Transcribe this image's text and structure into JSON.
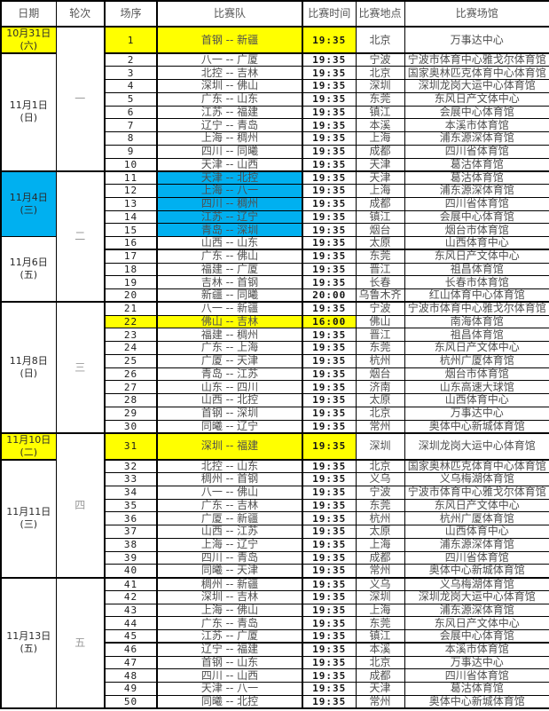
{
  "header": {
    "date": "日期",
    "round": "轮次",
    "order": "场序",
    "teams": "比赛队",
    "time": "比赛时间",
    "location": "比赛地点",
    "venue": "比赛场馆"
  },
  "colors": {
    "highlight_yellow": "#ffff00",
    "highlight_cyan": "#00b0f0"
  },
  "date_groups": [
    {
      "label": "10月31日",
      "week": "(六)",
      "rows": [
        1,
        1
      ],
      "bg": "yellow"
    },
    {
      "label": "11月1日",
      "week": "(日)",
      "rows": [
        2,
        10
      ],
      "bg": null
    },
    {
      "label": "11月4日",
      "week": "(三)",
      "rows": [
        11,
        15
      ],
      "bg": "cyan"
    },
    {
      "label": "11月6日",
      "week": "(五)",
      "rows": [
        16,
        20
      ],
      "bg": null
    },
    {
      "label": "11月8日",
      "week": "(日)",
      "rows": [
        21,
        30
      ],
      "bg": null
    },
    {
      "label": "11月10日",
      "week": "(二)",
      "rows": [
        31,
        31
      ],
      "bg": "yellow"
    },
    {
      "label": "11月11日",
      "week": "(三)",
      "rows": [
        32,
        40
      ],
      "bg": null
    },
    {
      "label": "11月13日",
      "week": "(五)",
      "rows": [
        41,
        50
      ],
      "bg": null
    }
  ],
  "rounds": [
    {
      "label": "一",
      "rows": [
        1,
        10
      ]
    },
    {
      "label": "二",
      "rows": [
        11,
        20
      ]
    },
    {
      "label": "三",
      "rows": [
        21,
        30
      ]
    },
    {
      "label": "四",
      "rows": [
        31,
        40
      ]
    },
    {
      "label": "五",
      "rows": [
        41,
        50
      ]
    }
  ],
  "matches": [
    {
      "no": "1",
      "teams": "首钢 -- 新疆",
      "time": "19:35",
      "location": "北京",
      "venue": "万事达中心",
      "hl": "yellow"
    },
    {
      "no": "2",
      "teams": "八一 -- 广厦",
      "time": "19:35",
      "location": "宁波",
      "venue": "宁波市体育中心雅戈尔体育馆",
      "hl": null
    },
    {
      "no": "3",
      "teams": "北控 -- 吉林",
      "time": "19:35",
      "location": "北京",
      "venue": "国家奥林匹克体育中心体育馆",
      "hl": null
    },
    {
      "no": "4",
      "teams": "深圳 -- 佛山",
      "time": "19:35",
      "location": "深圳",
      "venue": "深圳龙岗大运中心体育馆",
      "hl": null
    },
    {
      "no": "5",
      "teams": "广东 -- 山东",
      "time": "19:35",
      "location": "东莞",
      "venue": "东风日产文体中心",
      "hl": null
    },
    {
      "no": "6",
      "teams": "江苏 -- 福建",
      "time": "19:35",
      "location": "镇江",
      "venue": "会展中心体育馆",
      "hl": null
    },
    {
      "no": "7",
      "teams": "辽宁 -- 青岛",
      "time": "19:35",
      "location": "本溪",
      "venue": "本溪市体育馆",
      "hl": null
    },
    {
      "no": "8",
      "teams": "上海 -- 稠州",
      "time": "19:35",
      "location": "上海",
      "venue": "浦东源深体育馆",
      "hl": null
    },
    {
      "no": "9",
      "teams": "四川 -- 同曦",
      "time": "19:35",
      "location": "成都",
      "venue": "四川省体育馆",
      "hl": null
    },
    {
      "no": "10",
      "teams": "天津 -- 山西",
      "time": "19:35",
      "location": "天津",
      "venue": "葛沽体育馆",
      "hl": null
    },
    {
      "no": "11",
      "teams": "天津 -- 北控",
      "time": "19:35",
      "location": "天津",
      "venue": "葛沽体育馆",
      "hl": "cyan"
    },
    {
      "no": "12",
      "teams": "上海 -- 八一",
      "time": "19:35",
      "location": "上海",
      "venue": "浦东源深体育馆",
      "hl": "cyan"
    },
    {
      "no": "13",
      "teams": "四川 -- 稠州",
      "time": "19:35",
      "location": "成都",
      "venue": "四川省体育馆",
      "hl": "cyan"
    },
    {
      "no": "14",
      "teams": "江苏 -- 辽宁",
      "time": "19:35",
      "location": "镇江",
      "venue": "会展中心体育馆",
      "hl": "cyan"
    },
    {
      "no": "15",
      "teams": "青岛 -- 深圳",
      "time": "19:35",
      "location": "烟台",
      "venue": "烟台市体育馆",
      "hl": "cyan"
    },
    {
      "no": "16",
      "teams": "山西 -- 山东",
      "time": "19:35",
      "location": "太原",
      "venue": "山西体育中心",
      "hl": null
    },
    {
      "no": "17",
      "teams": "广东 -- 佛山",
      "time": "19:35",
      "location": "东莞",
      "venue": "东风日产文体中心",
      "hl": null
    },
    {
      "no": "18",
      "teams": "福建 -- 广厦",
      "time": "19:35",
      "location": "晋江",
      "venue": "祖昌体育馆",
      "hl": null
    },
    {
      "no": "19",
      "teams": "吉林 -- 首钢",
      "time": "19:35",
      "location": "长春",
      "venue": "长春市体育馆",
      "hl": null
    },
    {
      "no": "20",
      "teams": "新疆 -- 同曦",
      "time": "20:00",
      "location": "乌鲁木齐",
      "venue": "红山体育中心体育馆",
      "hl": null
    },
    {
      "no": "21",
      "teams": "八一 -- 新疆",
      "time": "19:35",
      "location": "宁波",
      "venue": "宁波市体育中心雅戈尔体育馆",
      "hl": null
    },
    {
      "no": "22",
      "teams": "佛山 -- 吉林",
      "time": "16:00",
      "location": "佛山",
      "venue": "南海体育馆",
      "hl": "yellow"
    },
    {
      "no": "23",
      "teams": "福建 -- 稠州",
      "time": "19:35",
      "location": "晋江",
      "venue": "祖昌体育馆",
      "hl": null
    },
    {
      "no": "24",
      "teams": "广东 -- 上海",
      "time": "19:35",
      "location": "东莞",
      "venue": "东风日产文体中心",
      "hl": null
    },
    {
      "no": "25",
      "teams": "广厦 -- 天津",
      "time": "19:35",
      "location": "杭州",
      "venue": "杭州广厦体育馆",
      "hl": null
    },
    {
      "no": "26",
      "teams": "青岛 -- 江苏",
      "time": "19:35",
      "location": "烟台",
      "venue": "烟台市体育馆",
      "hl": null
    },
    {
      "no": "27",
      "teams": "山东 -- 四川",
      "time": "19:35",
      "location": "济南",
      "venue": "山东高速大球馆",
      "hl": null
    },
    {
      "no": "28",
      "teams": "山西 -- 北控",
      "time": "19:35",
      "location": "太原",
      "venue": "山西体育中心",
      "hl": null
    },
    {
      "no": "29",
      "teams": "首钢 -- 深圳",
      "time": "19:35",
      "location": "北京",
      "venue": "万事达中心",
      "hl": null
    },
    {
      "no": "30",
      "teams": "同曦 -- 辽宁",
      "time": "19:35",
      "location": "常州",
      "venue": "奥体中心新城体育馆",
      "hl": null
    },
    {
      "no": "31",
      "teams": "深圳 -- 福建",
      "time": "19:35",
      "location": "深圳",
      "venue": "深圳龙岗大运中心体育馆",
      "hl": "yellow"
    },
    {
      "no": "32",
      "teams": "北控 -- 山东",
      "time": "19:35",
      "location": "北京",
      "venue": "国家奥林匹克体育中心体育馆",
      "hl": null
    },
    {
      "no": "33",
      "teams": "稠州 -- 首钢",
      "time": "19:35",
      "location": "义乌",
      "venue": "义乌梅湖体育馆",
      "hl": null
    },
    {
      "no": "34",
      "teams": "八一 -- 佛山",
      "time": "19:35",
      "location": "宁波",
      "venue": "宁波市体育中心雅戈尔体育馆",
      "hl": null
    },
    {
      "no": "35",
      "teams": "广东 -- 吉林",
      "time": "19:35",
      "location": "东莞",
      "venue": "东风日产文体中心",
      "hl": null
    },
    {
      "no": "36",
      "teams": "广厦 -- 新疆",
      "time": "19:35",
      "location": "杭州",
      "venue": "杭州广厦体育馆",
      "hl": null
    },
    {
      "no": "37",
      "teams": "山西 -- 江苏",
      "time": "19:35",
      "location": "太原",
      "venue": "山西体育中心",
      "hl": null
    },
    {
      "no": "38",
      "teams": "上海 -- 辽宁",
      "time": "19:35",
      "location": "上海",
      "venue": "浦东源深体育馆",
      "hl": null
    },
    {
      "no": "39",
      "teams": "四川 -- 青岛",
      "time": "19:35",
      "location": "成都",
      "venue": "四川省体育馆",
      "hl": null
    },
    {
      "no": "40",
      "teams": "同曦 -- 天津",
      "time": "19:35",
      "location": "常州",
      "venue": "奥体中心新城体育馆",
      "hl": null
    },
    {
      "no": "41",
      "teams": "稠州 -- 新疆",
      "time": "19:35",
      "location": "义乌",
      "venue": "义乌梅湖体育馆",
      "hl": null
    },
    {
      "no": "42",
      "teams": "深圳 -- 吉林",
      "time": "19:35",
      "location": "深圳",
      "venue": "深圳龙岗大运中心体育馆",
      "hl": null
    },
    {
      "no": "43",
      "teams": "上海 -- 佛山",
      "time": "19:35",
      "location": "上海",
      "venue": "浦东源深体育馆",
      "hl": null
    },
    {
      "no": "44",
      "teams": "广东 -- 青岛",
      "time": "19:35",
      "location": "东莞",
      "venue": "东风日产文体中心",
      "hl": null
    },
    {
      "no": "45",
      "teams": "江苏 -- 广厦",
      "time": "19:35",
      "location": "镇江",
      "venue": "会展中心体育馆",
      "hl": null
    },
    {
      "no": "46",
      "teams": "辽宁 -- 福建",
      "time": "19:35",
      "location": "本溪",
      "venue": "本溪市体育馆",
      "hl": null
    },
    {
      "no": "47",
      "teams": "首钢 -- 山东",
      "time": "19:35",
      "location": "北京",
      "venue": "万事达中心",
      "hl": null
    },
    {
      "no": "48",
      "teams": "四川 -- 山西",
      "time": "19:35",
      "location": "成都",
      "venue": "四川省体育馆",
      "hl": null
    },
    {
      "no": "49",
      "teams": "天津 -- 八一",
      "time": "19:35",
      "location": "天津",
      "venue": "葛沽体育馆",
      "hl": null
    },
    {
      "no": "50",
      "teams": "同曦 -- 北控",
      "time": "19:35",
      "location": "常州",
      "venue": "奥体中心新城体育馆",
      "hl": null
    }
  ]
}
